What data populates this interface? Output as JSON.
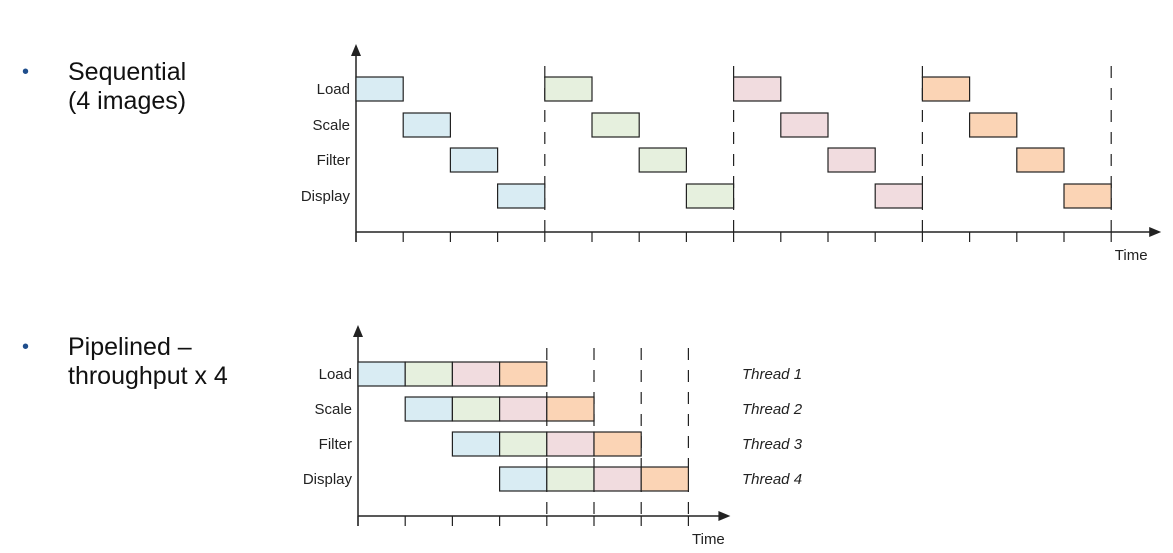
{
  "colors": {
    "blue": "#d9ecf3",
    "green": "#e6f0de",
    "pink": "#f1dcdf",
    "orange": "#fbd4b5",
    "stroke": "#222222",
    "bullet": "#1f4e8c"
  },
  "sequential": {
    "bullet_text": "Sequential\n(4 images)",
    "row_labels": [
      "Load",
      "Scale",
      "Filter",
      "Display"
    ],
    "time_label": "Time",
    "images": [
      "blue",
      "green",
      "pink",
      "orange"
    ],
    "slots_per_image": 4,
    "total_slots": 16
  },
  "pipelined": {
    "bullet_text": "Pipelined –\nthroughput x 4",
    "row_labels": [
      "Load",
      "Scale",
      "Filter",
      "Display"
    ],
    "thread_labels": [
      "Thread 1",
      "Thread 2",
      "Thread 3",
      "Thread 4"
    ],
    "time_label": "Time",
    "images": [
      "blue",
      "green",
      "pink",
      "orange"
    ],
    "total_slots": 7
  }
}
